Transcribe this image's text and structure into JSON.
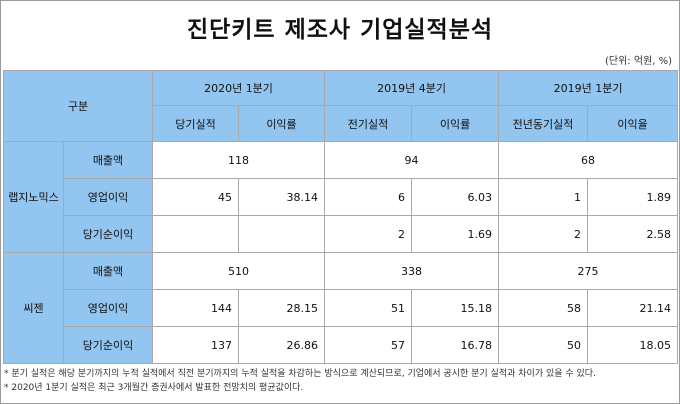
{
  "title": "진단키트 제조사 기업실적분석",
  "unit": "(단위: 억원, %)",
  "header": {
    "corner": "구분",
    "periods": [
      "2020년 1분기",
      "2019년 4분기",
      "2019년 1분기"
    ],
    "metrics": [
      "당기실적",
      "이익률",
      "전기실적",
      "이익률",
      "전년동기실적",
      "이익율"
    ]
  },
  "companies": [
    {
      "name": "랩지노믹스",
      "rows": [
        {
          "label": "매출액",
          "v2020": "118",
          "v2019q4": "94",
          "v2019q1": "68"
        },
        {
          "label": "영업이익",
          "cells": [
            "45",
            "38.14",
            "6",
            "6.03",
            "1",
            "1.89"
          ]
        },
        {
          "label": "당기순이익",
          "cells": [
            "",
            "",
            "2",
            "1.69",
            "2",
            "2.58"
          ]
        }
      ]
    },
    {
      "name": "씨젠",
      "rows": [
        {
          "label": "매출액",
          "v2020": "510",
          "v2019q4": "338",
          "v2019q1": "275"
        },
        {
          "label": "영업이익",
          "cells": [
            "144",
            "28.15",
            "51",
            "15.18",
            "58",
            "21.14"
          ]
        },
        {
          "label": "당기순이익",
          "cells": [
            "137",
            "26.86",
            "57",
            "16.78",
            "50",
            "18.05"
          ]
        }
      ]
    }
  ],
  "notes": [
    "* 분기 실적은 해당 분기까지의 누적 실적에서 직전 분기까지의 누적 실적을 차감하는 방식으로 계산되므로, 기업에서 공시한 분기 실적과 차이가 있을 수 있다.",
    "* 2020년 1분기 실적은 최근 3개월간 증권사에서 발표한 전망치의 평균값이다."
  ]
}
